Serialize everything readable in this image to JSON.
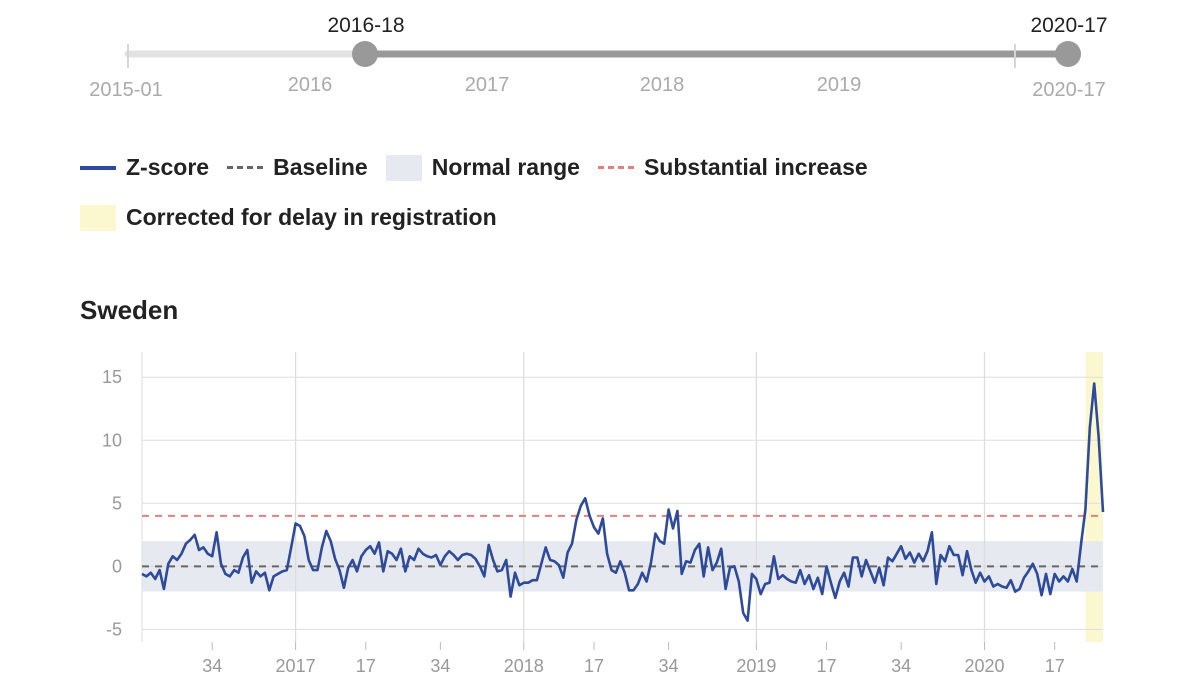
{
  "slider": {
    "start_handle_label": "2016-18",
    "end_handle_label": "2020-17",
    "min_label": "2015-01",
    "max_label": "2020-17",
    "year_labels": [
      "2016",
      "2017",
      "2018",
      "2019"
    ],
    "start_value": "2016-18",
    "end_value": "2020-17"
  },
  "legend": {
    "zscore": "Z-score",
    "baseline": "Baseline",
    "normal_range": "Normal range",
    "substantial_increase": "Substantial increase",
    "corrected": "Corrected for delay in registration"
  },
  "colors": {
    "zscore": "#2e4a9a",
    "baseline": "#666666",
    "normal_range": "#e6eaf0",
    "substantial_increase": "#e08080",
    "corrected": "#fbf8cf",
    "slider_active": "#999999",
    "slider_inactive": "#e2e2e2"
  },
  "chart_data": {
    "type": "line",
    "title": "Sweden",
    "x_start": "2016-18",
    "x_end": "2020-17",
    "ylim": [
      -6,
      17
    ],
    "yticks": [
      -5,
      0,
      5,
      10,
      15
    ],
    "xtick_labels": [
      "34",
      "2017",
      "17",
      "34",
      "2018",
      "17",
      "34",
      "2019",
      "17",
      "34",
      "2020",
      "17"
    ],
    "baseline": 0,
    "normal_range": [
      -2,
      2
    ],
    "substantial_increase": 4,
    "corrected_weeks": 4,
    "grid": true,
    "series": [
      {
        "name": "Z-score",
        "values": [
          -0.6,
          -0.8,
          -0.5,
          -1.0,
          -0.3,
          -1.8,
          0.2,
          0.8,
          0.5,
          1.0,
          1.8,
          2.1,
          2.5,
          1.3,
          1.5,
          1.0,
          0.8,
          2.7,
          0.2,
          -0.6,
          -0.8,
          -0.3,
          -0.5,
          0.7,
          1.3,
          -1.3,
          -0.4,
          -0.8,
          -0.5,
          -1.9,
          -0.8,
          -0.6,
          -0.4,
          -0.3,
          1.5,
          3.4,
          3.2,
          2.4,
          0.5,
          -0.3,
          -0.3,
          1.5,
          2.8,
          2.0,
          0.6,
          -0.3,
          -1.7,
          -0.1,
          0.5,
          -0.4,
          0.8,
          1.3,
          1.6,
          1.0,
          1.9,
          -0.4,
          1.2,
          1.0,
          0.5,
          1.4,
          -0.4,
          0.8,
          0.5,
          1.4,
          1.0,
          0.8,
          0.7,
          0.9,
          0.1,
          0.8,
          1.2,
          0.9,
          0.5,
          0.9,
          1.0,
          0.9,
          0.6,
          0.0,
          -0.8,
          1.7,
          0.5,
          -0.4,
          -0.3,
          0.5,
          -2.4,
          -0.5,
          -1.5,
          -1.3,
          -1.3,
          -1.1,
          -1.1,
          0.2,
          1.5,
          0.5,
          0.4,
          0.1,
          -0.9,
          1.1,
          1.8,
          3.7,
          4.8,
          5.4,
          4.0,
          3.1,
          2.6,
          3.8,
          1.0,
          -0.3,
          -0.5,
          0.4,
          -0.5,
          -1.9,
          -1.9,
          -1.4,
          -0.5,
          -1.2,
          0.3,
          2.6,
          2.0,
          1.8,
          4.5,
          3.0,
          4.4,
          -0.6,
          0.4,
          0.3,
          1.3,
          1.8,
          -0.8,
          1.5,
          -0.3,
          0.3,
          1.4,
          -1.8,
          -0.1,
          0.0,
          -1.2,
          -3.7,
          -4.3,
          -0.6,
          -1.0,
          -2.2,
          -1.4,
          -1.3,
          0.8,
          -1.0,
          -0.7,
          -1.0,
          -1.2,
          -1.3,
          -0.3,
          -1.4,
          -0.7,
          -1.8,
          -0.9,
          -2.2,
          0.0,
          -1.3,
          -2.5,
          -1.2,
          -0.5,
          -1.6,
          0.7,
          0.7,
          -0.8,
          0.5,
          -0.4,
          -1.3,
          -0.1,
          -1.5,
          0.7,
          0.4,
          1.0,
          1.6,
          0.6,
          1.1,
          0.3,
          1.0,
          0.4,
          1.2,
          2.7,
          -1.4,
          0.9,
          0.4,
          1.6,
          0.9,
          0.9,
          -0.7,
          1.2,
          -0.3,
          -1.3,
          -0.5,
          -1.2,
          -0.8,
          -1.6,
          -1.4,
          -1.6,
          -1.7,
          -1.1,
          -2.0,
          -1.8,
          -0.9,
          -0.4,
          0.2,
          -0.6,
          -2.3,
          -0.6,
          -2.2,
          -0.6,
          -1.2,
          -0.8,
          -1.2,
          -0.2,
          -1.2,
          1.8,
          4.5,
          11.0,
          14.5,
          10.3,
          4.3
        ]
      }
    ]
  }
}
